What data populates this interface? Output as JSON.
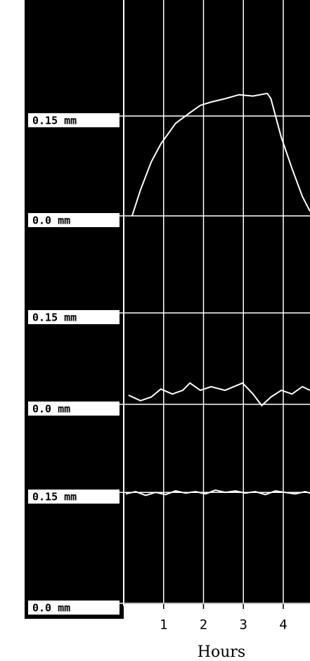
{
  "chart_data": [
    {
      "type": "line",
      "xlim": [
        0,
        4.67
      ],
      "ylim": [
        0,
        0.3
      ],
      "yticks": [
        {
          "value": 0.15,
          "label": "0.15 mm"
        },
        {
          "value": 0,
          "label": "0.0 mm"
        }
      ],
      "x": [
        0.21,
        0.42,
        0.69,
        0.93,
        1.3,
        1.66,
        1.92,
        2.19,
        2.54,
        2.89,
        3.24,
        3.6,
        3.69,
        3.95,
        4.22,
        4.48,
        4.67
      ],
      "series": [
        {
          "color": "#ffffff",
          "values": [
            0,
            0.039,
            0.081,
            0.108,
            0.139,
            0.155,
            0.166,
            0.171,
            0.176,
            0.182,
            0.18,
            0.184,
            0.176,
            0.118,
            0.071,
            0.029,
            0.007
          ]
        }
      ]
    },
    {
      "type": "line",
      "xlim": [
        0,
        4.67
      ],
      "ylim": [
        0,
        0.3
      ],
      "yticks": [
        {
          "value": 0.15,
          "label": "0.15 mm"
        },
        {
          "value": 0,
          "label": "0.0 mm"
        }
      ],
      "x": [
        0.12,
        0.42,
        0.69,
        0.93,
        1.22,
        1.48,
        1.66,
        1.92,
        2.19,
        2.54,
        2.98,
        3.24,
        3.46,
        3.69,
        3.95,
        4.22,
        4.48,
        4.67
      ],
      "series": [
        {
          "color": "#ffffff",
          "values": [
            0.015,
            0.006,
            0.012,
            0.025,
            0.017,
            0.023,
            0.035,
            0.023,
            0.029,
            0.023,
            0.035,
            0.017,
            -0.002,
            0.012,
            0.023,
            0.017,
            0.029,
            0.023
          ]
        }
      ]
    },
    {
      "type": "line",
      "xlim": [
        0,
        4.67
      ],
      "ylim": [
        0,
        0.25
      ],
      "yticks": [
        {
          "value": 0.15,
          "label": "0.15 mm"
        },
        {
          "value": 0,
          "label": "0.0 mm"
        }
      ],
      "xticks": [
        1,
        2,
        3,
        4
      ],
      "xlabel": "Hours",
      "x": [
        0.05,
        0.3,
        0.55,
        0.8,
        1.05,
        1.3,
        1.55,
        1.8,
        2.05,
        2.3,
        2.55,
        2.8,
        3.05,
        3.3,
        3.55,
        3.8,
        4.05,
        4.3,
        4.55,
        4.67
      ],
      "series": [
        {
          "color": "#ffffff",
          "values": [
            0.148,
            0.151,
            0.146,
            0.15,
            0.147,
            0.152,
            0.149,
            0.151,
            0.148,
            0.153,
            0.15,
            0.152,
            0.149,
            0.151,
            0.147,
            0.152,
            0.15,
            0.148,
            0.151,
            0.149
          ]
        }
      ]
    }
  ]
}
